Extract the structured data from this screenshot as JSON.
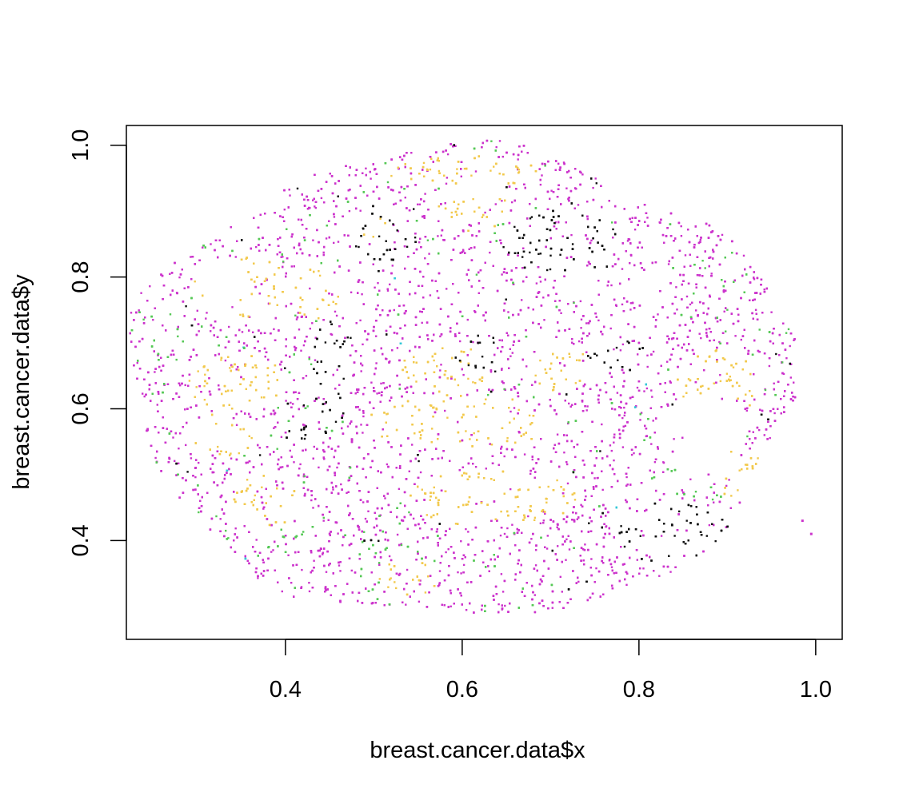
{
  "chart_data": {
    "type": "scatter",
    "title": "",
    "xlabel": "breast.cancer.data$x",
    "ylabel": "breast.cancer.data$y",
    "xlim": [
      0.22,
      1.03
    ],
    "ylim": [
      0.25,
      1.03
    ],
    "x_ticks": [
      0.4,
      0.6,
      0.8,
      1.0
    ],
    "x_tick_labels": [
      "0.4",
      "0.6",
      "0.8",
      "1.0"
    ],
    "y_ticks": [
      0.4,
      0.6,
      0.8,
      1.0
    ],
    "y_tick_labels": [
      "0.4",
      "0.6",
      "0.8",
      "1.0"
    ],
    "grid": false,
    "legend": "none",
    "point_colors": {
      "stroma": "#cc33cc",
      "tumor": "#f2c94c",
      "immune": "#55c855",
      "dense": "#111111",
      "other": "#33c8d8"
    },
    "tissue_outline": {
      "center": [
        0.6,
        0.638
      ],
      "x_radius": 0.375,
      "y_radius": 0.356
    },
    "regions": [
      {
        "name": "tumor",
        "type": "ellipse",
        "cx": 0.355,
        "cy": 0.785,
        "rx": 0.06,
        "ry": 0.045
      },
      {
        "name": "tumor",
        "type": "ellipse",
        "cx": 0.435,
        "cy": 0.775,
        "rx": 0.028,
        "ry": 0.042
      },
      {
        "name": "tumor",
        "type": "ellipse",
        "cx": 0.345,
        "cy": 0.64,
        "rx": 0.055,
        "ry": 0.045
      },
      {
        "name": "tumor",
        "type": "ellipse",
        "cx": 0.33,
        "cy": 0.56,
        "rx": 0.035,
        "ry": 0.035
      },
      {
        "name": "tumor",
        "type": "ellipse",
        "cx": 0.38,
        "cy": 0.46,
        "rx": 0.04,
        "ry": 0.04
      },
      {
        "name": "tumor",
        "type": "ellipse",
        "cx": 0.6,
        "cy": 0.58,
        "rx": 0.11,
        "ry": 0.04
      },
      {
        "name": "tumor",
        "type": "ellipse",
        "cx": 0.635,
        "cy": 0.465,
        "rx": 0.095,
        "ry": 0.045
      },
      {
        "name": "tumor",
        "type": "ellipse",
        "cx": 0.58,
        "cy": 0.66,
        "rx": 0.05,
        "ry": 0.04
      },
      {
        "name": "tumor",
        "type": "ellipse",
        "cx": 0.71,
        "cy": 0.66,
        "rx": 0.035,
        "ry": 0.035
      },
      {
        "name": "tumor",
        "type": "ellipse",
        "cx": 0.6,
        "cy": 0.96,
        "rx": 0.085,
        "ry": 0.025
      },
      {
        "name": "tumor",
        "type": "ellipse",
        "cx": 0.61,
        "cy": 0.905,
        "rx": 0.045,
        "ry": 0.035
      },
      {
        "name": "tumor",
        "type": "ellipse",
        "cx": 0.505,
        "cy": 0.88,
        "rx": 0.025,
        "ry": 0.025
      },
      {
        "name": "tumor",
        "type": "ellipse",
        "cx": 0.89,
        "cy": 0.64,
        "rx": 0.05,
        "ry": 0.05
      },
      {
        "name": "tumor",
        "type": "ellipse",
        "cx": 0.915,
        "cy": 0.5,
        "rx": 0.03,
        "ry": 0.04
      },
      {
        "name": "tumor",
        "type": "ellipse",
        "cx": 0.54,
        "cy": 0.345,
        "rx": 0.035,
        "ry": 0.03
      },
      {
        "name": "immune",
        "type": "ellipse",
        "cx": 0.45,
        "cy": 0.655,
        "rx": 0.03,
        "ry": 0.095
      },
      {
        "name": "immune",
        "type": "ellipse",
        "cx": 0.52,
        "cy": 0.36,
        "rx": 0.045,
        "ry": 0.04
      },
      {
        "name": "immune",
        "type": "ellipse",
        "cx": 0.4,
        "cy": 0.42,
        "rx": 0.045,
        "ry": 0.035
      },
      {
        "name": "immune",
        "type": "ellipse",
        "cx": 0.84,
        "cy": 0.47,
        "rx": 0.05,
        "ry": 0.04
      },
      {
        "name": "immune",
        "type": "ellipse",
        "cx": 0.27,
        "cy": 0.7,
        "rx": 0.025,
        "ry": 0.04
      },
      {
        "name": "immune",
        "type": "ellipse",
        "cx": 0.66,
        "cy": 0.87,
        "rx": 0.04,
        "ry": 0.04
      },
      {
        "name": "dense",
        "type": "ellipse",
        "cx": 0.455,
        "cy": 0.665,
        "rx": 0.025,
        "ry": 0.09
      },
      {
        "name": "dense",
        "type": "ellipse",
        "cx": 0.51,
        "cy": 0.865,
        "rx": 0.04,
        "ry": 0.045
      },
      {
        "name": "dense",
        "type": "ellipse",
        "cx": 0.71,
        "cy": 0.855,
        "rx": 0.07,
        "ry": 0.05
      },
      {
        "name": "dense",
        "type": "ellipse",
        "cx": 0.79,
        "cy": 0.935,
        "rx": 0.04,
        "ry": 0.025
      },
      {
        "name": "dense",
        "type": "ellipse",
        "cx": 0.84,
        "cy": 0.41,
        "rx": 0.065,
        "ry": 0.05
      },
      {
        "name": "dense",
        "type": "ellipse",
        "cx": 0.615,
        "cy": 0.695,
        "rx": 0.025,
        "ry": 0.04
      },
      {
        "name": "dense",
        "type": "ellipse",
        "cx": 0.775,
        "cy": 0.68,
        "rx": 0.035,
        "ry": 0.025
      },
      {
        "name": "dense",
        "type": "ellipse",
        "cx": 0.88,
        "cy": 0.575,
        "rx": 0.045,
        "ry": 0.035
      },
      {
        "name": "dense",
        "type": "ellipse",
        "cx": 0.425,
        "cy": 0.56,
        "rx": 0.025,
        "ry": 0.015
      },
      {
        "name": "white",
        "type": "ellipse",
        "cx": 0.33,
        "cy": 0.795,
        "rx": 0.03,
        "ry": 0.03
      },
      {
        "name": "white",
        "type": "ellipse",
        "cx": 0.315,
        "cy": 0.565,
        "rx": 0.025,
        "ry": 0.02
      },
      {
        "name": "white",
        "type": "ellipse",
        "cx": 0.81,
        "cy": 0.78,
        "rx": 0.03,
        "ry": 0.022
      },
      {
        "name": "white",
        "type": "ellipse",
        "cx": 0.87,
        "cy": 0.56,
        "rx": 0.05,
        "ry": 0.06
      },
      {
        "name": "white",
        "type": "ellipse",
        "cx": 0.61,
        "cy": 0.48,
        "rx": 0.03,
        "ry": 0.012
      },
      {
        "name": "white",
        "type": "ellipse",
        "cx": 0.605,
        "cy": 0.93,
        "rx": 0.02,
        "ry": 0.012
      },
      {
        "name": "white",
        "type": "ellipse",
        "cx": 0.78,
        "cy": 0.93,
        "rx": 0.025,
        "ry": 0.01
      },
      {
        "name": "white",
        "type": "ellipse",
        "cx": 0.63,
        "cy": 0.58,
        "rx": 0.02,
        "ry": 0.01
      }
    ],
    "outliers": [
      {
        "x": 0.995,
        "y": 0.41
      },
      {
        "x": 0.985,
        "y": 0.43
      }
    ]
  }
}
